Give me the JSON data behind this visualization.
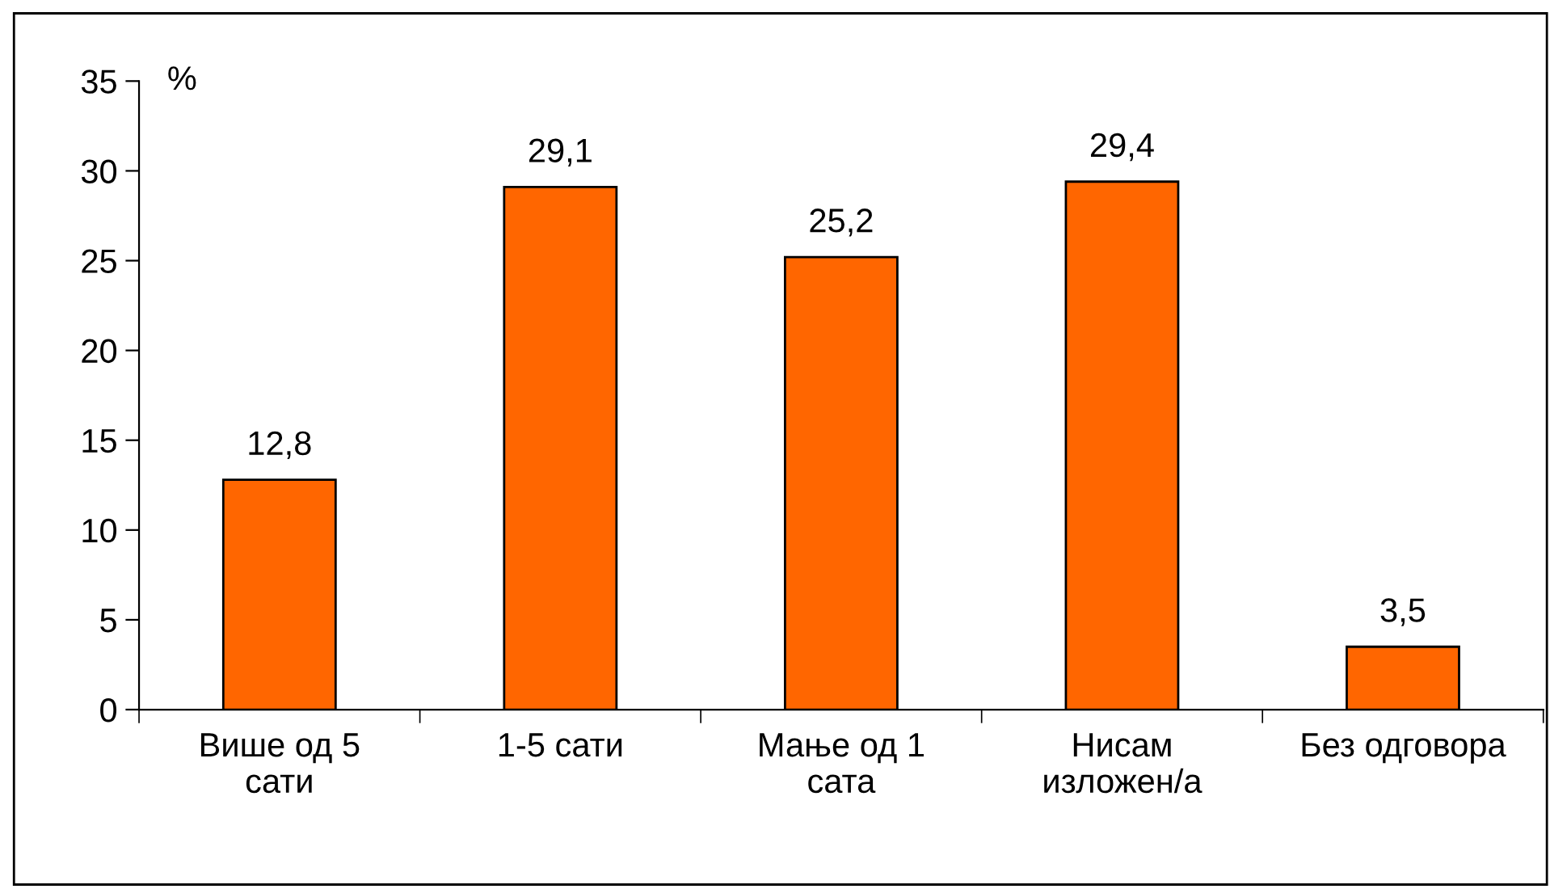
{
  "chart_data": {
    "type": "bar",
    "ylabel": "%",
    "categories": [
      "Више од 5\nсати",
      "1-5 сати",
      "Мање од 1\nсата",
      "Нисам\nизложен/а",
      "Без одговора"
    ],
    "values": [
      12.8,
      29.1,
      25.2,
      29.4,
      3.5
    ],
    "value_labels": [
      "12,8",
      "29,1",
      "25,2",
      "29,4",
      "3,5"
    ],
    "color": "#ff6600",
    "ylim": [
      0,
      35
    ],
    "yticks": [
      0,
      5,
      10,
      15,
      20,
      25,
      30,
      35
    ],
    "grid": false
  }
}
